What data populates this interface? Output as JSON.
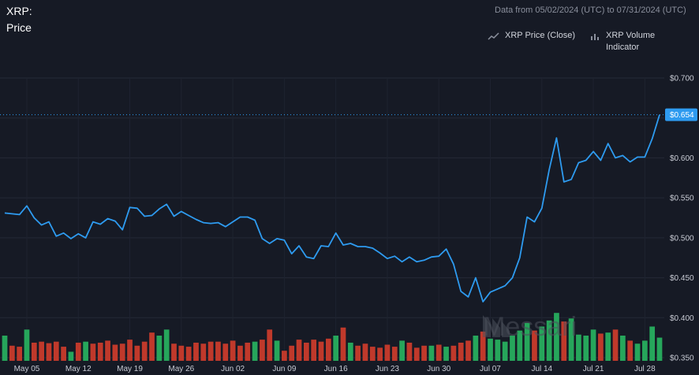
{
  "header": {
    "title": "XRP:\nPrice",
    "range_note": "Data from 05/02/2024 (UTC) to 07/31/2024 (UTC)"
  },
  "legend": {
    "price_label": "XRP Price (Close)",
    "volume_label": "XRP Volume Indicator",
    "price_icon": "line-chart-icon",
    "volume_icon": "bar-chart-icon"
  },
  "watermark": "Messari",
  "last_price_label": "$0.654",
  "colors": {
    "background": "#161a25",
    "line": "#2e9bf0",
    "volume_up": "#26a65b",
    "volume_down": "#c0392b",
    "last_price_tag": "#2e9bf0"
  },
  "chart_data": [
    {
      "type": "line",
      "name": "XRP Price (Close)",
      "ylim": [
        0.35,
        0.72
      ],
      "yticks": [
        "$0.350",
        "$0.400",
        "$0.450",
        "$0.500",
        "$0.550",
        "$0.600",
        "$0.650",
        "$0.700"
      ],
      "xticks": [
        "May 05",
        "May 12",
        "May 19",
        "May 26",
        "Jun 02",
        "Jun 09",
        "Jun 16",
        "Jun 23",
        "Jun 30",
        "Jul 07",
        "Jul 14",
        "Jul 21",
        "Jul 28"
      ],
      "grid": true,
      "last_value": 0.654,
      "values": [
        0.531,
        0.53,
        0.529,
        0.54,
        0.525,
        0.516,
        0.52,
        0.502,
        0.506,
        0.499,
        0.505,
        0.5,
        0.52,
        0.517,
        0.524,
        0.521,
        0.51,
        0.538,
        0.537,
        0.527,
        0.528,
        0.536,
        0.542,
        0.527,
        0.533,
        0.528,
        0.523,
        0.519,
        0.518,
        0.519,
        0.514,
        0.52,
        0.526,
        0.526,
        0.522,
        0.499,
        0.493,
        0.499,
        0.497,
        0.48,
        0.49,
        0.476,
        0.474,
        0.49,
        0.489,
        0.506,
        0.491,
        0.493,
        0.489,
        0.489,
        0.487,
        0.481,
        0.474,
        0.477,
        0.47,
        0.476,
        0.47,
        0.472,
        0.476,
        0.477,
        0.486,
        0.467,
        0.433,
        0.426,
        0.45,
        0.42,
        0.432,
        0.436,
        0.44,
        0.45,
        0.475,
        0.526,
        0.52,
        0.537,
        0.585,
        0.625,
        0.57,
        0.573,
        0.594,
        0.597,
        0.608,
        0.597,
        0.618,
        0.6,
        0.603,
        0.595,
        0.601,
        0.601,
        0.624,
        0.654
      ]
    },
    {
      "type": "bar",
      "name": "XRP Volume Indicator",
      "values": [
        0.5,
        0.3,
        0.28,
        0.62,
        0.36,
        0.38,
        0.35,
        0.38,
        0.28,
        0.18,
        0.36,
        0.38,
        0.34,
        0.36,
        0.4,
        0.32,
        0.34,
        0.42,
        0.3,
        0.38,
        0.56,
        0.5,
        0.62,
        0.34,
        0.3,
        0.28,
        0.36,
        0.34,
        0.38,
        0.38,
        0.34,
        0.4,
        0.3,
        0.36,
        0.38,
        0.42,
        0.62,
        0.4,
        0.2,
        0.3,
        0.42,
        0.36,
        0.42,
        0.38,
        0.44,
        0.5,
        0.66,
        0.36,
        0.3,
        0.34,
        0.28,
        0.26,
        0.32,
        0.28,
        0.4,
        0.36,
        0.26,
        0.3,
        0.3,
        0.32,
        0.28,
        0.3,
        0.36,
        0.4,
        0.5,
        0.58,
        0.44,
        0.42,
        0.38,
        0.5,
        0.6,
        0.75,
        0.6,
        0.68,
        0.8,
        0.95,
        0.78,
        0.84,
        0.52,
        0.5,
        0.62,
        0.54,
        0.56,
        0.62,
        0.5,
        0.4,
        0.34,
        0.4,
        0.68,
        0.46
      ],
      "directions": [
        1,
        -1,
        -1,
        1,
        -1,
        -1,
        -1,
        -1,
        -1,
        1,
        -1,
        1,
        -1,
        -1,
        -1,
        -1,
        -1,
        -1,
        -1,
        -1,
        -1,
        1,
        1,
        -1,
        -1,
        -1,
        -1,
        -1,
        -1,
        -1,
        -1,
        -1,
        -1,
        -1,
        1,
        -1,
        -1,
        1,
        -1,
        -1,
        -1,
        -1,
        -1,
        -1,
        -1,
        1,
        -1,
        1,
        -1,
        -1,
        -1,
        -1,
        -1,
        -1,
        1,
        -1,
        -1,
        -1,
        1,
        -1,
        1,
        -1,
        -1,
        -1,
        1,
        -1,
        1,
        1,
        1,
        1,
        1,
        1,
        -1,
        1,
        1,
        1,
        -1,
        1,
        1,
        1,
        1,
        -1,
        1,
        -1,
        1,
        -1,
        1,
        1,
        1,
        1
      ]
    }
  ]
}
